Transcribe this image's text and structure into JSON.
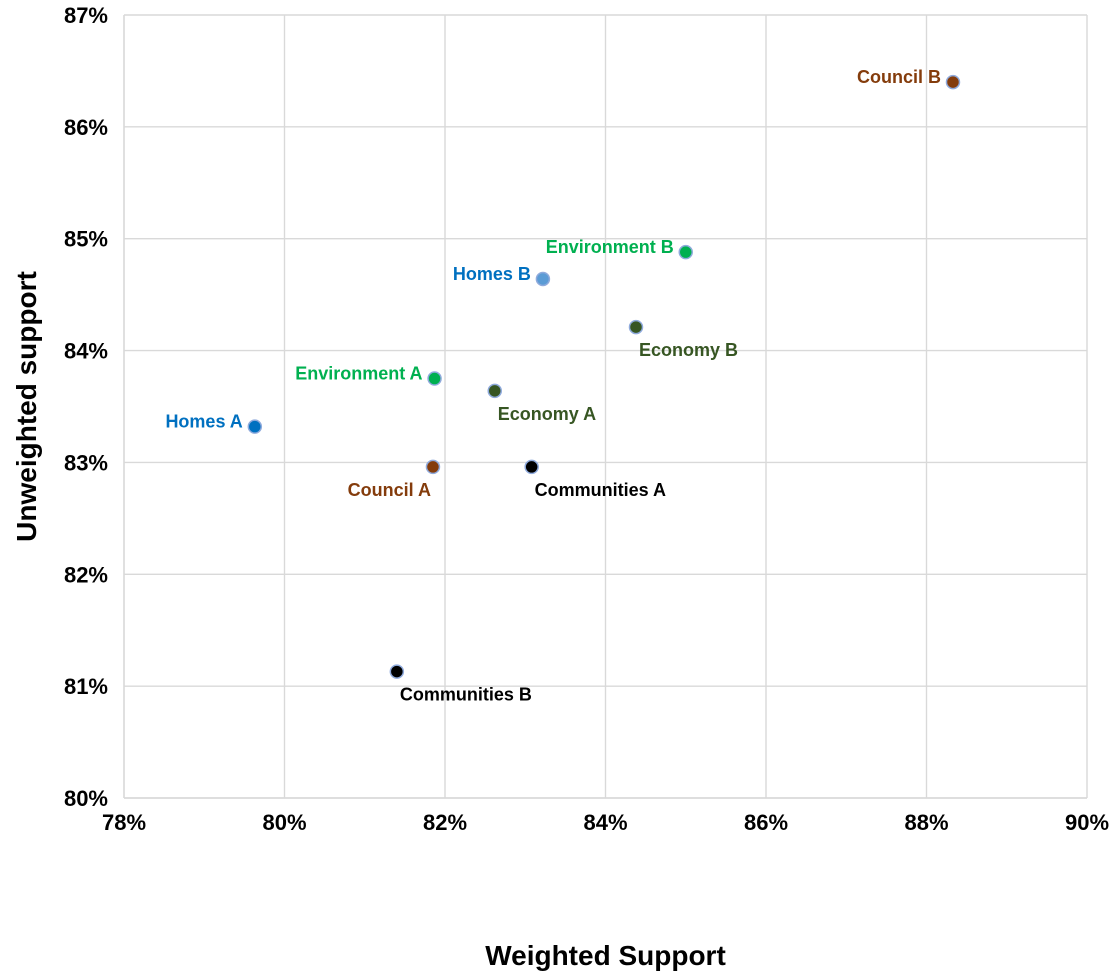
{
  "chart_data": {
    "type": "scatter",
    "title": "",
    "xlabel": "Weighted Support",
    "ylabel": "Unweighted support",
    "xlim": [
      78,
      90
    ],
    "ylim": [
      80,
      87
    ],
    "x_ticks": [
      "78%",
      "80%",
      "82%",
      "84%",
      "86%",
      "88%",
      "90%"
    ],
    "y_ticks": [
      "80%",
      "81%",
      "82%",
      "83%",
      "84%",
      "85%",
      "86%",
      "87%"
    ],
    "grid": true,
    "legend": "none",
    "points": [
      {
        "label": "Council B",
        "x": 88.33,
        "y": 86.4,
        "color": "#843c0c",
        "label_pos": "left"
      },
      {
        "label": "Environment B",
        "x": 85.0,
        "y": 84.88,
        "color": "#00b050",
        "label_pos": "left"
      },
      {
        "label": "Homes B",
        "x": 83.22,
        "y": 84.64,
        "color": "#5b9bd5",
        "label_pos": "left"
      },
      {
        "label": "Economy B",
        "x": 84.38,
        "y": 84.21,
        "color": "#375623",
        "label_pos": "below-right"
      },
      {
        "label": "Environment A",
        "x": 81.87,
        "y": 83.75,
        "color": "#00b050",
        "label_pos": "left"
      },
      {
        "label": "Economy A",
        "x": 82.62,
        "y": 83.64,
        "color": "#375623",
        "label_pos": "below-right"
      },
      {
        "label": "Homes A",
        "x": 79.63,
        "y": 83.32,
        "color": "#0070c0",
        "label_pos": "left"
      },
      {
        "label": "Council A",
        "x": 81.85,
        "y": 82.96,
        "color": "#843c0c",
        "label_pos": "below-left"
      },
      {
        "label": "Communities A",
        "x": 83.08,
        "y": 82.96,
        "color": "#000000",
        "label_pos": "below-right"
      },
      {
        "label": "Communities B",
        "x": 81.4,
        "y": 81.13,
        "color": "#000000",
        "label_pos": "below-right"
      }
    ],
    "label_colors": {
      "Council": "#843c0c",
      "Environment": "#00b050",
      "Homes": "#0070c0",
      "Economy": "#375623",
      "Communities": "#000000"
    }
  }
}
